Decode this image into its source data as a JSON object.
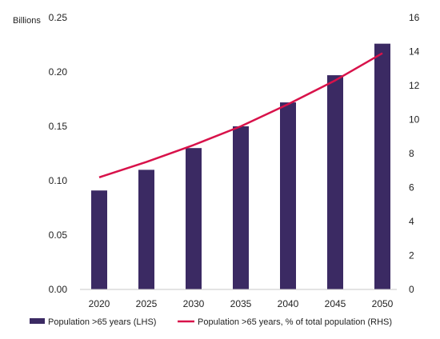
{
  "chart_data": {
    "type": "bar",
    "categories": [
      "2020",
      "2025",
      "2030",
      "2035",
      "2040",
      "2045",
      "2050"
    ],
    "series": [
      {
        "name": "Population >65 years (LHS)",
        "type": "bar",
        "axis": "left",
        "values": [
          0.091,
          0.11,
          0.13,
          0.15,
          0.172,
          0.197,
          0.226
        ]
      },
      {
        "name": "Population >65 years, % of total population (RHS)",
        "type": "line",
        "axis": "right",
        "values": [
          6.6,
          7.5,
          8.5,
          9.6,
          10.9,
          12.3,
          13.9
        ]
      }
    ],
    "y_left": {
      "label": "Billions",
      "lim": [
        0,
        0.25
      ],
      "ticks": [
        "0.00",
        "0.05",
        "0.10",
        "0.15",
        "0.20",
        "0.25"
      ]
    },
    "y_right": {
      "label": "",
      "lim": [
        0,
        16
      ],
      "ticks": [
        "0",
        "2",
        "4",
        "6",
        "8",
        "10",
        "12",
        "14",
        "16"
      ]
    },
    "title": "",
    "xlabel": "",
    "grid": false,
    "legend_position": "bottom",
    "colors": {
      "bars": "#3b2a63",
      "line": "#d8124a"
    }
  }
}
